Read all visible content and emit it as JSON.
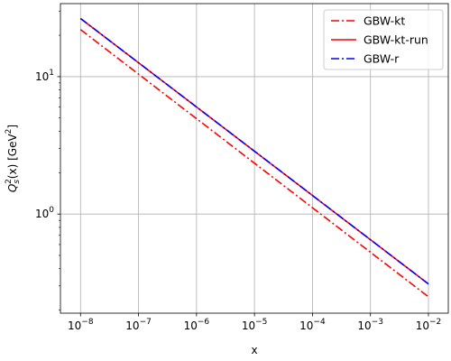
{
  "chart_data": {
    "type": "line",
    "xlabel": "x",
    "ylabel_main": "Q",
    "ylabel_sub": "s",
    "ylabel_sup": "2",
    "ylabel_mid": "(x) [GeV",
    "ylabel_unit_sup": "2",
    "ylabel_end": "]",
    "xscale": "log",
    "yscale": "log",
    "xlim": [
      4.5e-09,
      0.022
    ],
    "ylim": [
      0.19,
      34
    ],
    "grid": true,
    "legend_position": "top-right",
    "x_ticks": [
      {
        "value": 1e-08,
        "base": "10",
        "exp": "−8"
      },
      {
        "value": 1e-07,
        "base": "10",
        "exp": "−7"
      },
      {
        "value": 1e-06,
        "base": "10",
        "exp": "−6"
      },
      {
        "value": 1e-05,
        "base": "10",
        "exp": "−5"
      },
      {
        "value": 0.0001,
        "base": "10",
        "exp": "−4"
      },
      {
        "value": 0.001,
        "base": "10",
        "exp": "−3"
      },
      {
        "value": 0.01,
        "base": "10",
        "exp": "−2"
      }
    ],
    "y_ticks": [
      {
        "value": 1,
        "base": "10",
        "exp": "0"
      },
      {
        "value": 10,
        "base": "10",
        "exp": "1"
      }
    ],
    "series": [
      {
        "name": "GBW-kt",
        "color": "#ff0000",
        "style": "dashdot",
        "x": [
          1e-08,
          0.01
        ],
        "y": [
          22.0,
          0.25
        ]
      },
      {
        "name": "GBW-kt-run",
        "color": "#ff0000",
        "style": "solid",
        "x": [
          1e-08,
          0.01
        ],
        "y": [
          26.5,
          0.31
        ]
      },
      {
        "name": "GBW-r",
        "color": "#0000ff",
        "style": "dashdot",
        "x": [
          1e-08,
          0.01
        ],
        "y": [
          26.5,
          0.31
        ]
      }
    ]
  }
}
